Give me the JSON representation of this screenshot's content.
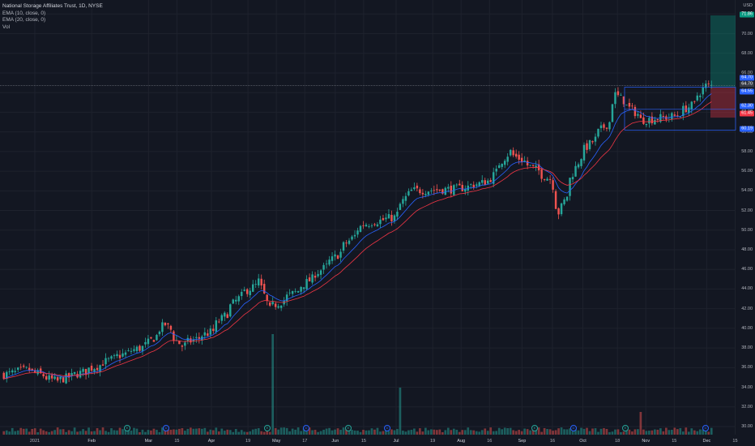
{
  "legend": {
    "title": "National Storage Affiliates Trust, 1D, NYSE",
    "ema10": "EMA (10, close, 0)",
    "ema20": "EMA (20, close, 0)",
    "vol": "Vol"
  },
  "axis": {
    "currency": "USD",
    "y_ticks": [
      "72.00",
      "70.00",
      "68.00",
      "66.00",
      "64.00",
      "62.00",
      "60.00",
      "58.00",
      "56.00",
      "54.00",
      "52.00",
      "50.00",
      "48.00",
      "46.00",
      "44.00",
      "42.00",
      "40.00",
      "38.00",
      "36.00",
      "34.00",
      "32.00",
      "30.00"
    ],
    "x_ticks": [
      "2021",
      "Feb",
      "Mar",
      "15",
      "Apr",
      "19",
      "May",
      "17",
      "Jun",
      "15",
      "Jul",
      "19",
      "Aug",
      "16",
      "Sep",
      "16",
      "Oct",
      "18",
      "Nov",
      "15",
      "Dec",
      "15"
    ]
  },
  "price_boxes": {
    "target": "71.86",
    "last_a": "64.70",
    "last_b": "64.70",
    "level_a": "64.55",
    "level_b": "62.30",
    "stop": "61.45",
    "support": "60.19"
  },
  "events": [
    "E",
    "D",
    "E",
    "D",
    "E",
    "D",
    "E",
    "D",
    "E",
    "D"
  ],
  "colors": {
    "up": "#26a69a",
    "down": "#ef5350",
    "ema10": "#2962ff",
    "ema20": "#f23645",
    "bg": "#131722"
  },
  "chart_data": {
    "type": "candlestick",
    "title": "National Storage Affiliates Trust, 1D, NYSE",
    "ylim": [
      29.5,
      73.5
    ],
    "close_path": [
      [
        "2021-01-04",
        35.3
      ],
      [
        "2021-01-15",
        35.8
      ],
      [
        "2021-01-29",
        34.6
      ],
      [
        "2021-02-12",
        35.6
      ],
      [
        "2021-02-26",
        36.9
      ],
      [
        "2021-03-05",
        37.5
      ],
      [
        "2021-03-15",
        38.3
      ],
      [
        "2021-03-24",
        40.4
      ],
      [
        "2021-04-01",
        38.2
      ],
      [
        "2021-04-16",
        39.7
      ],
      [
        "2021-04-30",
        43.3
      ],
      [
        "2021-05-10",
        44.8
      ],
      [
        "2021-05-14",
        41.9
      ],
      [
        "2021-05-28",
        43.8
      ],
      [
        "2021-06-15",
        47.0
      ],
      [
        "2021-06-30",
        50.6
      ],
      [
        "2021-07-15",
        51.3
      ],
      [
        "2021-07-19",
        52.6
      ],
      [
        "2021-07-23",
        54.0
      ],
      [
        "2021-08-16",
        54.2
      ],
      [
        "2021-08-31",
        55.0
      ],
      [
        "2021-09-10",
        58.0
      ],
      [
        "2021-09-30",
        55.2
      ],
      [
        "2021-10-05",
        51.8
      ],
      [
        "2021-10-15",
        57.5
      ],
      [
        "2021-10-29",
        61.0
      ],
      [
        "2021-11-02",
        63.8
      ],
      [
        "2021-11-15",
        61.2
      ],
      [
        "2021-12-01",
        61.6
      ],
      [
        "2021-12-10",
        62.8
      ],
      [
        "2021-12-16",
        64.7
      ]
    ],
    "volume_spikes": [
      [
        "2021-05-17",
        "max"
      ],
      [
        "2021-07-19",
        "high"
      ],
      [
        "2021-11-15",
        "medium"
      ]
    ],
    "lines": {
      "resistance": 64.55,
      "level": 62.3,
      "support": 60.19,
      "target": 71.86,
      "stop": 61.45
    }
  }
}
